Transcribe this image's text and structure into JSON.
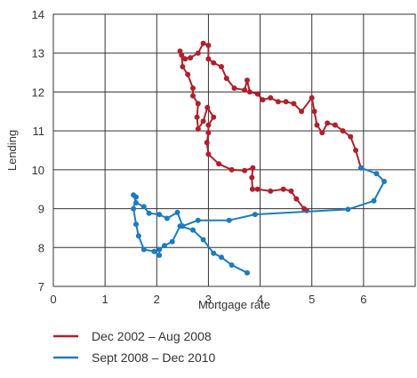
{
  "chart_data": {
    "type": "line",
    "title": "",
    "xlabel": "Mortgage rate",
    "ylabel": "Lending",
    "xlim": [
      0,
      7
    ],
    "ylim": [
      7,
      14
    ],
    "x_ticks": [
      "0",
      "1",
      "2",
      "3",
      "4",
      "5",
      "6"
    ],
    "y_ticks": [
      "7",
      "8",
      "9",
      "10",
      "11",
      "12",
      "13",
      "14"
    ],
    "grid": true,
    "legend_position": "bottom-left",
    "series": [
      {
        "name": "Dec 2002 – Aug 2008",
        "color": "#b11f2b",
        "marker": "dot",
        "points": [
          [
            4.9,
            8.95
          ],
          [
            4.85,
            9.0
          ],
          [
            4.7,
            9.25
          ],
          [
            4.6,
            9.45
          ],
          [
            4.45,
            9.5
          ],
          [
            4.2,
            9.45
          ],
          [
            3.95,
            9.5
          ],
          [
            3.85,
            9.5
          ],
          [
            3.84,
            9.8
          ],
          [
            3.86,
            10.05
          ],
          [
            3.7,
            9.98
          ],
          [
            3.45,
            10.0
          ],
          [
            3.2,
            10.15
          ],
          [
            3.0,
            10.4
          ],
          [
            2.97,
            10.7
          ],
          [
            3.0,
            10.95
          ],
          [
            3.0,
            11.15
          ],
          [
            3.1,
            11.35
          ],
          [
            2.98,
            11.6
          ],
          [
            2.9,
            11.25
          ],
          [
            2.8,
            11.05
          ],
          [
            2.78,
            11.35
          ],
          [
            2.8,
            11.7
          ],
          [
            2.7,
            11.9
          ],
          [
            2.7,
            12.1
          ],
          [
            2.6,
            12.45
          ],
          [
            2.5,
            12.65
          ],
          [
            2.48,
            12.95
          ],
          [
            2.45,
            13.05
          ],
          [
            2.55,
            12.85
          ],
          [
            2.65,
            12.88
          ],
          [
            2.8,
            13.0
          ],
          [
            2.9,
            13.25
          ],
          [
            3.0,
            13.2
          ],
          [
            3.0,
            12.85
          ],
          [
            3.1,
            12.75
          ],
          [
            3.25,
            12.65
          ],
          [
            3.35,
            12.35
          ],
          [
            3.5,
            12.1
          ],
          [
            3.7,
            12.05
          ],
          [
            3.75,
            12.3
          ],
          [
            3.8,
            12.0
          ],
          [
            3.95,
            11.95
          ],
          [
            4.05,
            11.8
          ],
          [
            4.2,
            11.85
          ],
          [
            4.35,
            11.75
          ],
          [
            4.5,
            11.75
          ],
          [
            4.65,
            11.7
          ],
          [
            4.8,
            11.5
          ],
          [
            5.0,
            11.85
          ],
          [
            5.05,
            11.5
          ],
          [
            5.1,
            11.15
          ],
          [
            5.2,
            10.95
          ],
          [
            5.3,
            11.2
          ],
          [
            5.45,
            11.15
          ],
          [
            5.6,
            11.0
          ],
          [
            5.75,
            10.85
          ],
          [
            5.85,
            10.5
          ],
          [
            5.95,
            10.05
          ]
        ]
      },
      {
        "name": "Sept 2008 – Dec 2010",
        "color": "#1a7cc1",
        "marker": "dot",
        "points": [
          [
            5.95,
            10.05
          ],
          [
            6.25,
            9.9
          ],
          [
            6.4,
            9.7
          ],
          [
            6.2,
            9.2
          ],
          [
            5.7,
            8.98
          ],
          [
            3.9,
            8.85
          ],
          [
            3.4,
            8.7
          ],
          [
            2.8,
            8.7
          ],
          [
            2.5,
            8.55
          ],
          [
            2.4,
            8.9
          ],
          [
            2.2,
            8.75
          ],
          [
            2.05,
            8.85
          ],
          [
            1.85,
            8.88
          ],
          [
            1.75,
            9.05
          ],
          [
            1.6,
            9.15
          ],
          [
            1.55,
            9.35
          ],
          [
            1.6,
            9.3
          ],
          [
            1.55,
            9.0
          ],
          [
            1.6,
            8.6
          ],
          [
            1.65,
            8.3
          ],
          [
            1.75,
            7.95
          ],
          [
            1.95,
            7.9
          ],
          [
            2.05,
            7.8
          ],
          [
            2.05,
            7.95
          ],
          [
            2.15,
            8.05
          ],
          [
            2.3,
            8.15
          ],
          [
            2.45,
            8.55
          ],
          [
            2.7,
            8.45
          ],
          [
            2.9,
            8.2
          ],
          [
            3.1,
            7.85
          ],
          [
            3.25,
            7.75
          ],
          [
            3.45,
            7.55
          ],
          [
            3.75,
            7.35
          ]
        ]
      }
    ]
  }
}
